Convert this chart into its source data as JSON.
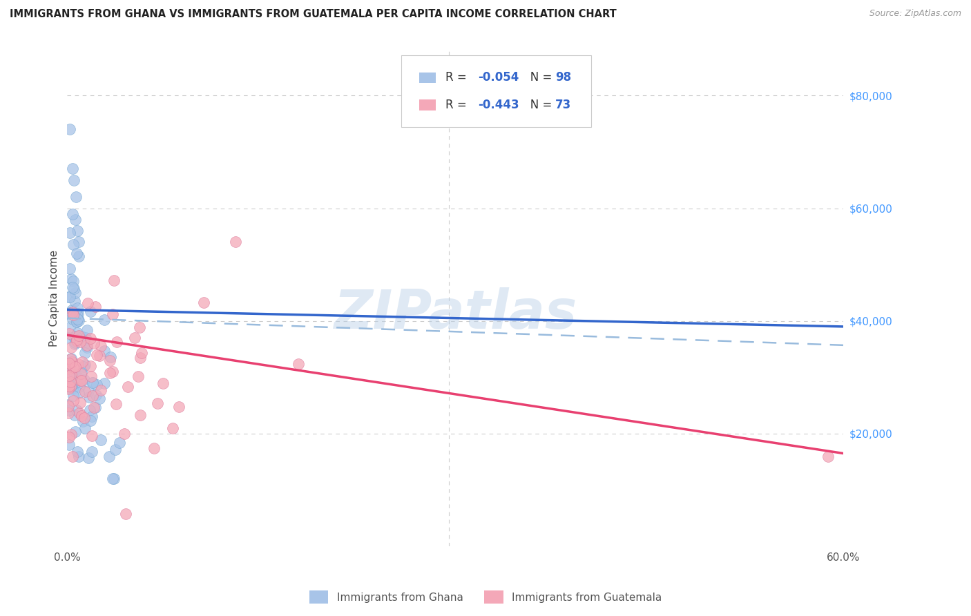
{
  "title": "IMMIGRANTS FROM GHANA VS IMMIGRANTS FROM GUATEMALA PER CAPITA INCOME CORRELATION CHART",
  "source": "Source: ZipAtlas.com",
  "ylabel": "Per Capita Income",
  "xlim": [
    0.0,
    0.6
  ],
  "ylim": [
    0,
    88000
  ],
  "xtick_positions": [
    0.0,
    0.6
  ],
  "xticklabels": [
    "0.0%",
    "60.0%"
  ],
  "ytick_positions": [
    0,
    20000,
    40000,
    60000,
    80000
  ],
  "ytick_labels": [
    "",
    "$20,000",
    "$40,000",
    "$60,000",
    "$80,000"
  ],
  "ghana_color": "#a8c4e8",
  "ghana_edge_color": "#7aaad4",
  "guatemala_color": "#f4a8b8",
  "guatemala_edge_color": "#e080a0",
  "ghana_line_color": "#3366cc",
  "guatemala_line_color": "#e8406080",
  "dashed_line_color": "#99bbdd",
  "ghana_R": -0.054,
  "ghana_N": 98,
  "guatemala_R": -0.443,
  "guatemala_N": 73,
  "ghana_line_intercept": 42000,
  "ghana_line_slope": -5000,
  "guatemala_line_intercept": 37500,
  "guatemala_line_slope": -35000,
  "dashed_intercept": 40500,
  "dashed_slope": -8000,
  "watermark": "ZIPatlas",
  "background_color": "#ffffff",
  "grid_color": "#cccccc",
  "grid_vline_x": 0.295
}
